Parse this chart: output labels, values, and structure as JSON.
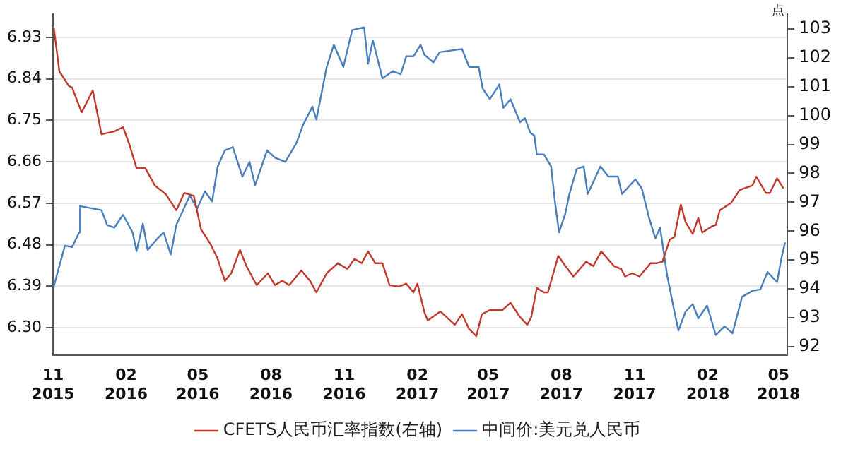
{
  "chart_data": {
    "type": "line",
    "y2label": "点",
    "xlim": [
      "2015-11-01",
      "2018-05-12"
    ],
    "xticks": [
      {
        "value": "2015-11-01",
        "label": "11\n2015"
      },
      {
        "value": "2016-02-01",
        "label": "02\n2016"
      },
      {
        "value": "2016-05-01",
        "label": "05\n2016"
      },
      {
        "value": "2016-08-01",
        "label": "08\n2016"
      },
      {
        "value": "2016-11-01",
        "label": "11\n2016"
      },
      {
        "value": "2017-02-01",
        "label": "02\n2017"
      },
      {
        "value": "2017-05-01",
        "label": "05\n2017"
      },
      {
        "value": "2017-08-01",
        "label": "08\n2017"
      },
      {
        "value": "2017-11-01",
        "label": "11\n2017"
      },
      {
        "value": "2018-02-01",
        "label": "02\n2018"
      },
      {
        "value": "2018-05-01",
        "label": "05\n2018"
      }
    ],
    "ylim": [
      6.24,
      6.98
    ],
    "yticks": [
      {
        "value": 6.3,
        "label": "6.30"
      },
      6.39,
      6.48,
      6.57,
      6.66,
      6.75,
      6.84,
      6.93
    ],
    "y2lim": [
      91.7,
      103.5
    ],
    "y2ticks": [
      92,
      93,
      94,
      95,
      96,
      97,
      98,
      99,
      100,
      101,
      102,
      103
    ],
    "grid": "y",
    "legend": "bottom",
    "marker": "none",
    "line_style": "solid",
    "series": [
      {
        "name": "CFETS人民币汇率指数(右轴)",
        "color": "#c0392b",
        "axis": "y2",
        "x": [
          "2015-11-02",
          "2015-11-09",
          "2015-11-21",
          "2015-11-25",
          "2015-12-07",
          "2015-12-21",
          "2016-01-01",
          "2016-01-17",
          "2016-01-28",
          "2016-02-05",
          "2016-02-14",
          "2016-02-25",
          "2016-03-08",
          "2016-03-22",
          "2016-04-04",
          "2016-04-14",
          "2016-04-26",
          "2016-05-05",
          "2016-05-17",
          "2016-05-26",
          "2016-06-04",
          "2016-06-12",
          "2016-06-23",
          "2016-07-01",
          "2016-07-14",
          "2016-07-28",
          "2016-08-06",
          "2016-08-15",
          "2016-08-24",
          "2016-09-08",
          "2016-09-19",
          "2016-09-27",
          "2016-10-10",
          "2016-10-24",
          "2016-11-05",
          "2016-11-14",
          "2016-11-23",
          "2016-12-01",
          "2016-12-10",
          "2016-12-19",
          "2016-12-28",
          "2017-01-09",
          "2017-01-18",
          "2017-01-27",
          "2017-02-01",
          "2017-02-10",
          "2017-02-14",
          "2017-03-02",
          "2017-03-20",
          "2017-03-29",
          "2017-04-07",
          "2017-04-16",
          "2017-04-23",
          "2017-05-03",
          "2017-05-19",
          "2017-05-29",
          "2017-06-10",
          "2017-06-19",
          "2017-06-24",
          "2017-07-01",
          "2017-07-10",
          "2017-07-15",
          "2017-07-28",
          "2017-08-06",
          "2017-08-16",
          "2017-09-01",
          "2017-09-10",
          "2017-09-20",
          "2017-10-06",
          "2017-10-15",
          "2017-10-20",
          "2017-10-29",
          "2017-11-07",
          "2017-11-21",
          "2017-11-29",
          "2017-12-06",
          "2017-12-15",
          "2017-12-21",
          "2017-12-29",
          "2018-01-04",
          "2018-01-13",
          "2018-01-20",
          "2018-01-25",
          "2018-02-06",
          "2018-02-11",
          "2018-02-16",
          "2018-03-02",
          "2018-03-13",
          "2018-03-29",
          "2018-04-03",
          "2018-04-15",
          "2018-04-20",
          "2018-04-29",
          "2018-05-07"
        ],
        "values": [
          103.05,
          101.53,
          101.02,
          100.97,
          100.11,
          100.87,
          99.35,
          99.45,
          99.6,
          99.0,
          98.18,
          98.18,
          97.58,
          97.27,
          96.72,
          97.32,
          97.22,
          96.06,
          95.55,
          95.04,
          94.28,
          94.54,
          95.35,
          94.79,
          94.13,
          94.54,
          94.13,
          94.28,
          94.13,
          94.64,
          94.28,
          93.88,
          94.54,
          94.89,
          94.69,
          95.04,
          94.89,
          95.3,
          94.89,
          94.89,
          94.13,
          94.08,
          94.18,
          93.88,
          94.18,
          93.17,
          92.91,
          93.22,
          92.76,
          93.12,
          92.61,
          92.36,
          93.12,
          93.27,
          93.27,
          93.52,
          93.02,
          92.76,
          93.02,
          94.03,
          93.88,
          93.88,
          95.14,
          94.79,
          94.43,
          94.94,
          94.79,
          95.3,
          94.79,
          94.69,
          94.43,
          94.54,
          94.43,
          94.89,
          94.89,
          94.94,
          95.7,
          95.8,
          96.92,
          96.31,
          95.9,
          96.46,
          95.95,
          96.16,
          96.21,
          96.72,
          96.97,
          97.42,
          97.58,
          97.88,
          97.32,
          97.32,
          97.83,
          97.48
        ]
      },
      {
        "name": "中间价:美元兑人民币",
        "color": "#4a7ebb",
        "x": [
          "2015-11-02",
          "2015-11-16",
          "2015-11-25",
          "2015-12-04",
          "2015-12-05",
          "2016-01-01",
          "2016-01-08",
          "2016-01-17",
          "2016-01-28",
          "2016-02-09",
          "2016-02-14",
          "2016-02-22",
          "2016-02-28",
          "2016-03-10",
          "2016-03-19",
          "2016-03-28",
          "2016-04-04",
          "2016-04-21",
          "2016-04-30",
          "2016-05-10",
          "2016-05-19",
          "2016-05-26",
          "2016-06-04",
          "2016-06-14",
          "2016-06-26",
          "2016-07-05",
          "2016-07-12",
          "2016-07-27",
          "2016-08-06",
          "2016-08-19",
          "2016-09-02",
          "2016-09-10",
          "2016-09-22",
          "2016-09-27",
          "2016-10-10",
          "2016-10-19",
          "2016-10-31",
          "2016-11-11",
          "2016-11-26",
          "2016-12-01",
          "2016-12-07",
          "2016-12-19",
          "2017-01-01",
          "2017-01-11",
          "2017-01-18",
          "2017-01-27",
          "2017-02-05",
          "2017-02-10",
          "2017-02-21",
          "2017-03-01",
          "2017-03-29",
          "2017-04-07",
          "2017-04-19",
          "2017-04-24",
          "2017-05-03",
          "2017-05-15",
          "2017-05-20",
          "2017-05-29",
          "2017-06-10",
          "2017-06-16",
          "2017-06-23",
          "2017-06-28",
          "2017-07-01",
          "2017-07-10",
          "2017-07-19",
          "2017-07-24",
          "2017-07-29",
          "2017-08-06",
          "2017-08-11",
          "2017-08-20",
          "2017-08-29",
          "2017-09-03",
          "2017-09-19",
          "2017-09-29",
          "2017-10-11",
          "2017-10-16",
          "2017-11-02",
          "2017-11-10",
          "2017-11-19",
          "2017-11-27",
          "2017-12-03",
          "2017-12-12",
          "2017-12-21",
          "2017-12-26",
          "2018-01-04",
          "2018-01-13",
          "2018-01-20",
          "2018-01-31",
          "2018-02-11",
          "2018-02-22",
          "2018-03-04",
          "2018-03-16",
          "2018-03-29",
          "2018-04-08",
          "2018-04-17",
          "2018-04-29",
          "2018-05-04",
          "2018-05-09"
        ],
        "values": [
          6.39,
          6.478,
          6.475,
          6.507,
          6.564,
          6.555,
          6.523,
          6.517,
          6.545,
          6.507,
          6.466,
          6.526,
          6.469,
          6.491,
          6.507,
          6.459,
          6.523,
          6.587,
          6.558,
          6.596,
          6.574,
          6.65,
          6.685,
          6.692,
          6.628,
          6.66,
          6.609,
          6.685,
          6.669,
          6.66,
          6.701,
          6.739,
          6.78,
          6.752,
          6.866,
          6.914,
          6.866,
          6.946,
          6.952,
          6.873,
          6.924,
          6.841,
          6.857,
          6.85,
          6.889,
          6.889,
          6.914,
          6.892,
          6.876,
          6.898,
          6.905,
          6.866,
          6.866,
          6.819,
          6.796,
          6.828,
          6.777,
          6.796,
          6.746,
          6.755,
          6.723,
          6.717,
          6.676,
          6.676,
          6.65,
          6.571,
          6.507,
          6.548,
          6.59,
          6.644,
          6.65,
          6.59,
          6.65,
          6.628,
          6.628,
          6.59,
          6.622,
          6.602,
          6.539,
          6.494,
          6.517,
          6.412,
          6.335,
          6.294,
          6.335,
          6.351,
          6.32,
          6.348,
          6.284,
          6.303,
          6.288,
          6.367,
          6.38,
          6.383,
          6.421,
          6.399,
          6.447,
          6.485
        ]
      }
    ]
  }
}
